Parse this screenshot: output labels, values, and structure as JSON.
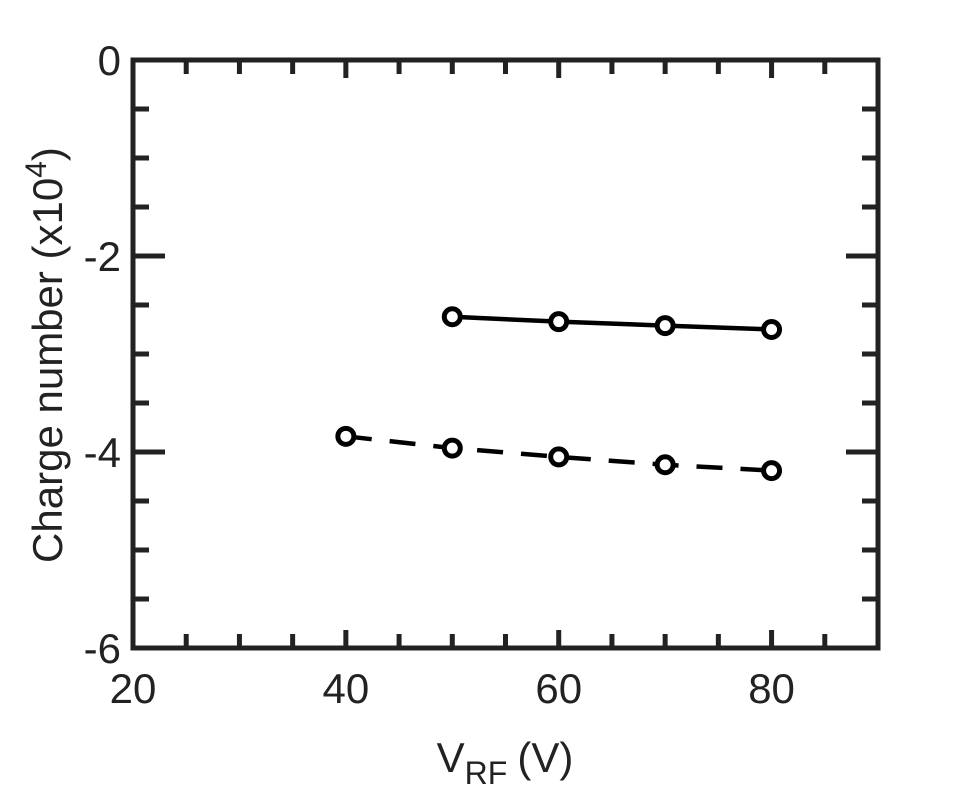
{
  "chart_data": {
    "type": "line",
    "title": "",
    "xlabel": {
      "main": "V",
      "sub": "RF",
      "unit": "(V)"
    },
    "ylabel": {
      "main": "Charge number (x10",
      "sup": "4",
      "close": ")"
    },
    "xlim": [
      20,
      90
    ],
    "ylim": [
      -6,
      0
    ],
    "x_ticks": [
      20,
      40,
      60,
      80
    ],
    "x_tick_labels": [
      "20",
      "40",
      "60",
      "80"
    ],
    "y_ticks": [
      0,
      -2,
      -4,
      -6
    ],
    "y_tick_labels": [
      "0",
      "-2",
      "-4",
      "-6"
    ],
    "grid": false,
    "legend": "none",
    "series": [
      {
        "style": "solid",
        "marker": "circle",
        "color": "#000000",
        "x": [
          50,
          60,
          70,
          80
        ],
        "y": [
          -2.62,
          -2.67,
          -2.71,
          -2.75
        ]
      },
      {
        "style": "dashed",
        "marker": "circle",
        "color": "#000000",
        "x": [
          40,
          50,
          60,
          70,
          80
        ],
        "y": [
          -3.84,
          -3.96,
          -4.05,
          -4.13,
          -4.19
        ]
      }
    ]
  }
}
